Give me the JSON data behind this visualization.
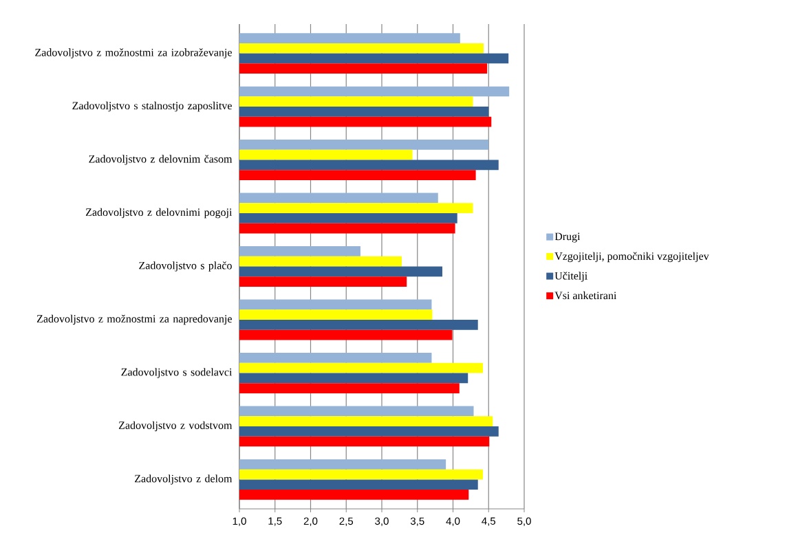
{
  "chart_data": {
    "type": "bar",
    "orientation": "horizontal",
    "categories": [
      "Zadovoljstvo z možnostmi za izobraževanje",
      "Zadovoljstvo s stalnostjo zaposlitve",
      "Zadovoljstvo z delovnim časom",
      "Zadovoljstvo z delovnimi pogoji",
      "Zadovoljstvo s plačo",
      "Zadovoljstvo z možnostmi za napredovanje",
      "Zadovoljstvo s sodelavci",
      "Zadovoljstvo z vodstvom",
      "Zadovoljstvo z delom"
    ],
    "series": [
      {
        "name": "Drugi",
        "color": "#95b3d7",
        "values": [
          4.1,
          4.79,
          4.5,
          3.79,
          2.7,
          3.7,
          3.7,
          4.29,
          3.9
        ]
      },
      {
        "name": "Vzgojitelji, pomočniki vzgojiteljev",
        "color": "#ffff00",
        "values": [
          4.43,
          4.28,
          3.43,
          4.28,
          3.28,
          3.71,
          4.42,
          4.56,
          4.42
        ]
      },
      {
        "name": "Učitelji",
        "color": "#366092",
        "values": [
          4.78,
          4.5,
          4.64,
          4.06,
          3.85,
          4.35,
          4.21,
          4.64,
          4.35
        ]
      },
      {
        "name": "Vsi anketirani",
        "color": "#ff0000",
        "values": [
          4.48,
          4.54,
          4.32,
          4.03,
          3.35,
          3.99,
          4.09,
          4.51,
          4.22
        ]
      }
    ],
    "xlim": [
      1.0,
      5.0
    ],
    "xticks": [
      {
        "value": 1.0,
        "label": "1,0"
      },
      {
        "value": 1.5,
        "label": "1,5"
      },
      {
        "value": 2.0,
        "label": "2,0"
      },
      {
        "value": 2.5,
        "label": "2,5"
      },
      {
        "value": 3.0,
        "label": "3,0"
      },
      {
        "value": 3.5,
        "label": "3,5"
      },
      {
        "value": 4.0,
        "label": "4,0"
      },
      {
        "value": 4.5,
        "label": "4,5"
      },
      {
        "value": 5.0,
        "label": "5,0"
      }
    ],
    "grid": "x",
    "legend": "right"
  }
}
